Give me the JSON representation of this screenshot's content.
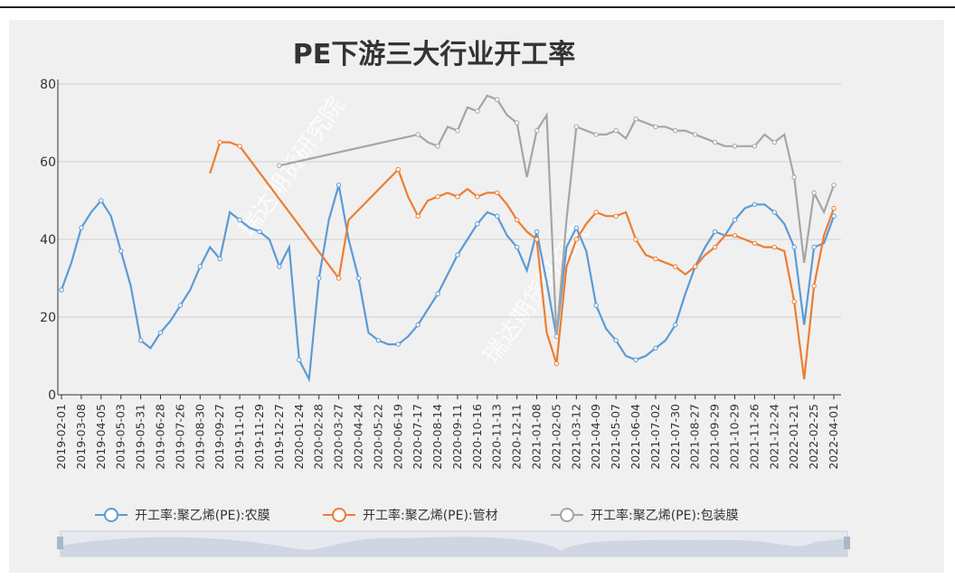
{
  "chart_data": {
    "type": "line",
    "title": "PE下游三大行业开工率",
    "watermark": "瑞达期货研究院",
    "categories": [
      "2019-02-01",
      null,
      "2019-03-08",
      null,
      "2019-04-05",
      null,
      "2019-05-03",
      null,
      "2019-05-31",
      null,
      "2019-06-28",
      null,
      "2019-07-26",
      null,
      "2019-08-30",
      null,
      "2019-09-27",
      null,
      "2019-11-01",
      null,
      "2019-11-29",
      null,
      "2019-12-27",
      null,
      "2020-01-24",
      null,
      "2020-02-28",
      null,
      "2020-03-27",
      null,
      "2020-04-24",
      null,
      "2020-05-22",
      null,
      "2020-06-19",
      null,
      "2020-07-17",
      null,
      "2020-08-14",
      null,
      "2020-09-11",
      null,
      "2020-10-16",
      null,
      "2020-11-13",
      null,
      "2020-12-11",
      null,
      "2021-01-08",
      null,
      "2021-02-05",
      null,
      "2021-03-12",
      null,
      "2021-04-09",
      null,
      "2021-05-07",
      null,
      "2021-06-04",
      null,
      "2021-07-02",
      null,
      "2021-07-30",
      null,
      "2021-08-27",
      null,
      "2021-09-29",
      null,
      "2021-10-29",
      null,
      "2021-11-26",
      null,
      "2021-12-24",
      null,
      "2022-01-21",
      null,
      "2022-02-25",
      null,
      "2022-04-01"
    ],
    "series": [
      {
        "name": "开工率:聚乙烯(PE):农膜",
        "color": "#5b9bd5",
        "values": [
          27,
          34,
          43,
          47,
          50,
          46,
          37,
          28,
          14,
          12,
          16,
          19,
          23,
          27,
          33,
          38,
          35,
          47,
          45,
          43,
          42,
          40,
          33,
          38,
          9,
          4,
          30,
          45,
          54,
          40,
          30,
          16,
          14,
          13,
          13,
          15,
          18,
          22,
          26,
          31,
          36,
          40,
          44,
          47,
          46,
          41,
          38,
          32,
          42,
          29,
          15,
          38,
          43,
          37,
          23,
          17,
          14,
          10,
          9,
          10,
          12,
          14,
          18,
          26,
          33,
          38,
          42,
          41,
          45,
          48,
          49,
          49,
          47,
          44,
          38,
          18,
          38,
          39,
          46
        ]
      },
      {
        "name": "开工率:聚乙烯(PE):管材",
        "color": "#ed7d31",
        "values": [
          null,
          null,
          null,
          null,
          null,
          null,
          null,
          null,
          null,
          null,
          null,
          null,
          null,
          null,
          null,
          57,
          65,
          65,
          64,
          null,
          null,
          null,
          null,
          null,
          null,
          null,
          null,
          null,
          30,
          45,
          null,
          null,
          null,
          null,
          58,
          51,
          46,
          50,
          51,
          52,
          51,
          53,
          51,
          52,
          52,
          49,
          45,
          42,
          40,
          16,
          8,
          33,
          40,
          44,
          47,
          46,
          46,
          47,
          40,
          36,
          35,
          34,
          33,
          31,
          33,
          36,
          38,
          41,
          41,
          40,
          39,
          38,
          38,
          37,
          24,
          4,
          28,
          41,
          48
        ]
      },
      {
        "name": "开工率:聚乙烯(PE):包装膜",
        "color": "#a5a5a5",
        "values": [
          null,
          null,
          null,
          null,
          null,
          null,
          null,
          null,
          null,
          null,
          null,
          null,
          null,
          null,
          null,
          null,
          null,
          null,
          null,
          null,
          null,
          null,
          59,
          null,
          null,
          null,
          null,
          null,
          null,
          null,
          null,
          null,
          null,
          null,
          null,
          null,
          67,
          65,
          64,
          69,
          68,
          74,
          73,
          77,
          76,
          72,
          70,
          56,
          68,
          72,
          15,
          45,
          69,
          68,
          67,
          67,
          68,
          66,
          71,
          70,
          69,
          69,
          68,
          68,
          67,
          66,
          65,
          64,
          64,
          64,
          64,
          67,
          65,
          67,
          56,
          34,
          52,
          47,
          54
        ]
      }
    ],
    "ylim": [
      0,
      80
    ],
    "yticks": [
      0,
      20,
      40,
      60,
      80
    ],
    "grid": true,
    "connect_nulls": true,
    "legend": "bottom"
  }
}
